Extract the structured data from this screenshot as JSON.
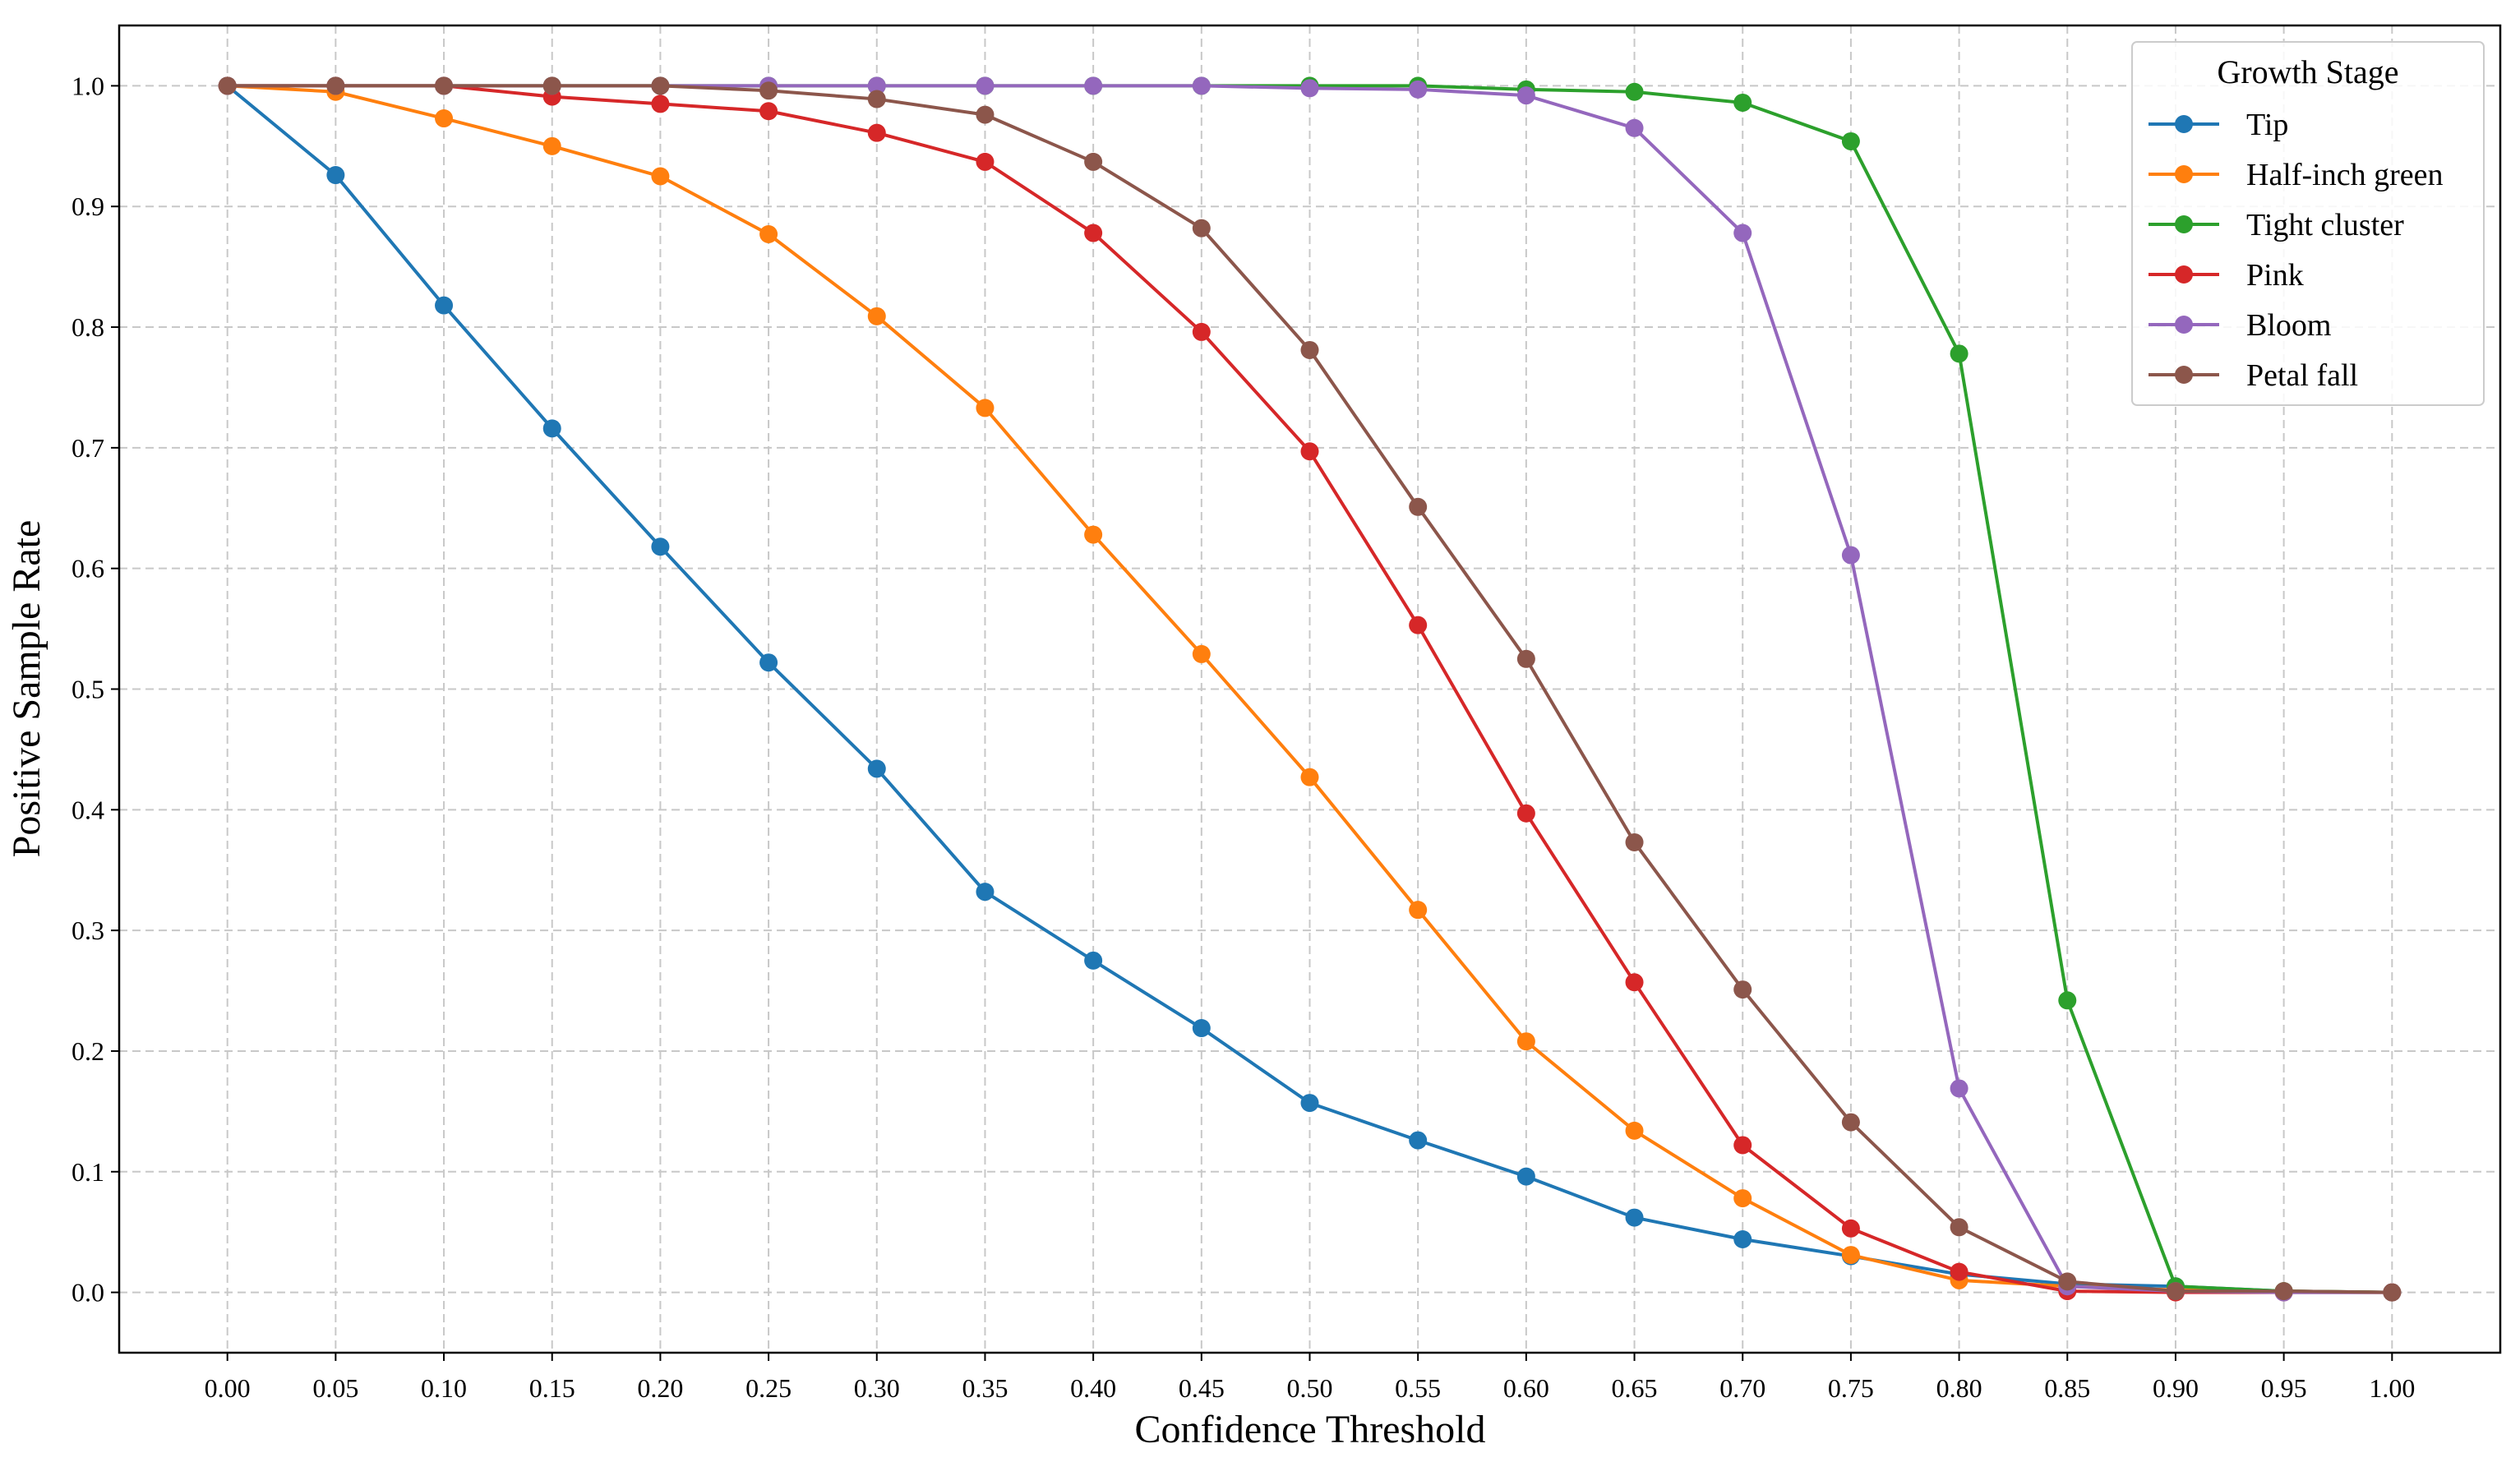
{
  "chart_data": {
    "type": "line",
    "xlabel": "Confidence Threshold",
    "ylabel": "Positive Sample Rate",
    "legend_title": "Growth Stage",
    "legend_position": "upper right",
    "grid": true,
    "x": [
      0,
      0.05,
      0.1,
      0.15,
      0.2,
      0.25,
      0.3,
      0.35,
      0.4,
      0.45,
      0.5,
      0.55,
      0.6,
      0.65,
      0.7,
      0.75,
      0.8,
      0.85,
      0.9,
      0.95,
      1
    ],
    "xlim": [
      -0.05,
      1.05
    ],
    "xticks": [
      {
        "value": 0,
        "label": "0.00"
      },
      0.05,
      {
        "value": 0.1,
        "label": "0.10"
      },
      0.15,
      {
        "value": 0.2,
        "label": "0.20"
      },
      0.25,
      {
        "value": 0.3,
        "label": "0.30"
      },
      0.35,
      {
        "value": 0.4,
        "label": "0.40"
      },
      0.45,
      {
        "value": 0.5,
        "label": "0.50"
      },
      0.55,
      {
        "value": 0.6,
        "label": "0.60"
      },
      0.65,
      {
        "value": 0.7,
        "label": "0.70"
      },
      0.75,
      {
        "value": 0.8,
        "label": "0.80"
      },
      0.85,
      {
        "value": 0.9,
        "label": "0.90"
      },
      0.95,
      {
        "value": 1,
        "label": "1.00"
      }
    ],
    "ylim": [
      -0.05,
      1.05
    ],
    "yticks": [
      {
        "value": 0,
        "label": "0.0"
      },
      0.1,
      0.2,
      0.3,
      0.4,
      0.5,
      0.6,
      0.7,
      0.8,
      0.9,
      {
        "value": 1,
        "label": "1.0"
      }
    ],
    "series": [
      {
        "name": "Tip",
        "color": "#1f77b4",
        "values": [
          1.0,
          0.926,
          0.818,
          0.716,
          0.618,
          0.522,
          0.434,
          0.332,
          0.275,
          0.219,
          0.157,
          0.126,
          0.096,
          0.062,
          0.044,
          0.03,
          0.015,
          0.007,
          0.005,
          0.001,
          0.0
        ]
      },
      {
        "name": "Half-inch green",
        "color": "#ff7f0e",
        "values": [
          1.0,
          0.995,
          0.973,
          0.95,
          0.925,
          0.877,
          0.809,
          0.733,
          0.628,
          0.529,
          0.427,
          0.317,
          0.208,
          0.134,
          0.078,
          0.031,
          0.01,
          0.005,
          0.002,
          0.001,
          0.0
        ]
      },
      {
        "name": "Tight cluster",
        "color": "#2ca02c",
        "values": [
          1.0,
          1.0,
          1.0,
          1.0,
          1.0,
          1.0,
          1.0,
          1.0,
          1.0,
          1.0,
          1.0,
          1.0,
          0.997,
          0.995,
          0.986,
          0.954,
          0.778,
          0.242,
          0.005,
          0.001,
          0.0
        ]
      },
      {
        "name": "Pink",
        "color": "#d62728",
        "values": [
          1.0,
          1.0,
          1.0,
          0.991,
          0.985,
          0.979,
          0.961,
          0.937,
          0.878,
          0.796,
          0.697,
          0.553,
          0.397,
          0.257,
          0.122,
          0.053,
          0.017,
          0.001,
          0.0,
          0.0,
          0.0
        ]
      },
      {
        "name": "Bloom",
        "color": "#9467bd",
        "values": [
          1.0,
          1.0,
          1.0,
          1.0,
          1.0,
          1.0,
          1.0,
          1.0,
          1.0,
          1.0,
          0.998,
          0.997,
          0.992,
          0.965,
          0.878,
          0.611,
          0.169,
          0.005,
          0.001,
          0.0,
          0.0
        ]
      },
      {
        "name": "Petal fall",
        "color": "#8c564b",
        "values": [
          1.0,
          1.0,
          1.0,
          1.0,
          1.0,
          0.996,
          0.989,
          0.976,
          0.937,
          0.882,
          0.781,
          0.651,
          0.525,
          0.373,
          0.251,
          0.141,
          0.054,
          0.009,
          0.001,
          0.001,
          0.0
        ]
      }
    ]
  }
}
